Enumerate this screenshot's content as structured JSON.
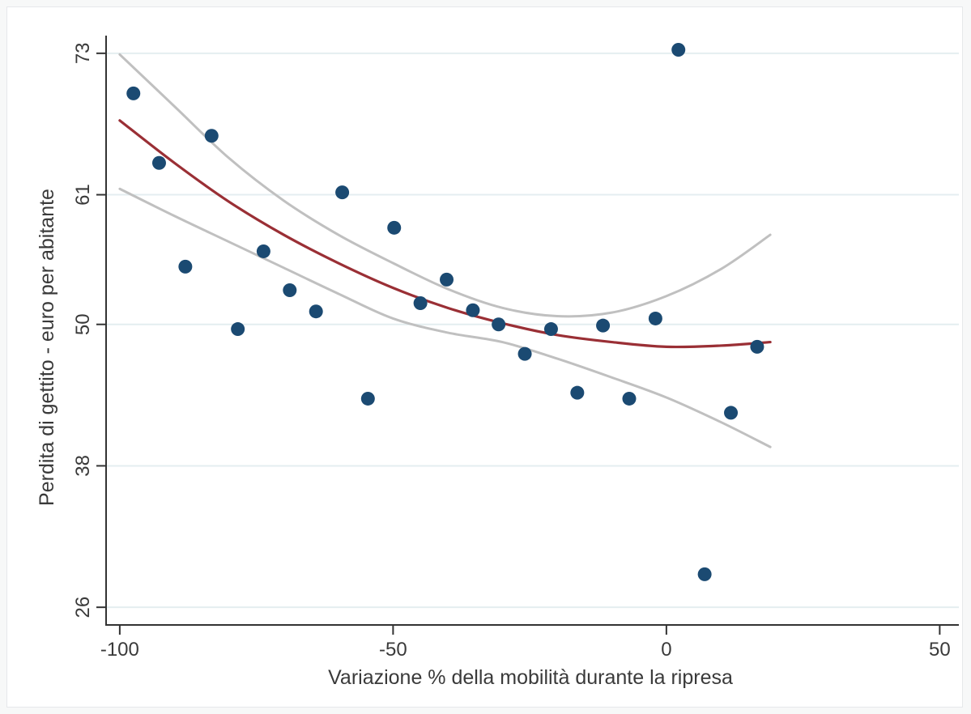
{
  "chart_data": {
    "type": "scatter",
    "title": "",
    "xlabel": "Variazione % della mobilità durante la ripresa",
    "ylabel": "Perdita di gettito - euro per abitante",
    "xlim": [
      -102.5,
      53.5
    ],
    "ylim": [
      24.5,
      74.5
    ],
    "x_ticks": [
      -100,
      -50,
      0,
      50
    ],
    "x_tick_labels": [
      "-100",
      "-50",
      "0",
      "50"
    ],
    "y_ticks": [
      26,
      38,
      50,
      61,
      73
    ],
    "y_tick_labels": [
      "26",
      "38",
      "50",
      "61",
      "73"
    ],
    "grid": "horizontal",
    "legend": "none",
    "colors": {
      "points": "#1b4a72",
      "fit": "#9a2f35",
      "ci": "#c0c0c0",
      "grid": "#e4eef0",
      "axis": "#333333"
    },
    "series": [
      {
        "type": "scatter",
        "points": [
          [
            -97.5,
            69.6
          ],
          [
            -92.8,
            63.7
          ],
          [
            -88,
            54.9
          ],
          [
            -83.2,
            66.0
          ],
          [
            -78.4,
            49.6
          ],
          [
            -73.7,
            56.2
          ],
          [
            -68.9,
            52.9
          ],
          [
            -64.1,
            51.1
          ],
          [
            -59.3,
            61.2
          ],
          [
            -54.6,
            43.7
          ],
          [
            -49.8,
            58.2
          ],
          [
            -45,
            51.8
          ],
          [
            -40.2,
            53.8
          ],
          [
            -35.4,
            51.2
          ],
          [
            -30.7,
            50.0
          ],
          [
            -25.9,
            47.5
          ],
          [
            -21.1,
            49.6
          ],
          [
            -16.3,
            44.2
          ],
          [
            -11.6,
            49.9
          ],
          [
            -6.8,
            43.7
          ],
          [
            -2,
            50.5
          ],
          [
            2.2,
            73.3
          ],
          [
            7,
            28.8
          ],
          [
            11.8,
            42.5
          ],
          [
            16.6,
            48.1
          ]
        ]
      },
      {
        "type": "line",
        "role": "fit",
        "x": [
          -100,
          -90,
          -80,
          -70,
          -60,
          -50,
          -40,
          -30,
          -20,
          -10,
          0,
          10,
          19
        ],
        "y": [
          67.3,
          63.7,
          60.4,
          57.6,
          55.2,
          53.1,
          51.4,
          50.1,
          49.1,
          48.5,
          48.1,
          48.2,
          48.5
        ]
      },
      {
        "type": "line",
        "role": "ci-upper",
        "x": [
          -100,
          -90,
          -80,
          -70,
          -60,
          -50,
          -40,
          -30,
          -20,
          -10,
          0,
          10,
          19
        ],
        "y": [
          72.9,
          68.5,
          64.1,
          60.5,
          57.6,
          55.2,
          53.0,
          51.4,
          50.7,
          51.0,
          52.4,
          54.7,
          57.6
        ]
      },
      {
        "type": "line",
        "role": "ci-lower",
        "x": [
          -100,
          -90,
          -80,
          -70,
          -60,
          -50,
          -40,
          -30,
          -20,
          -10,
          0,
          10,
          19
        ],
        "y": [
          61.5,
          59.2,
          57.0,
          54.8,
          52.6,
          50.5,
          49.3,
          48.5,
          47.1,
          45.5,
          43.8,
          41.7,
          39.6
        ]
      }
    ]
  }
}
